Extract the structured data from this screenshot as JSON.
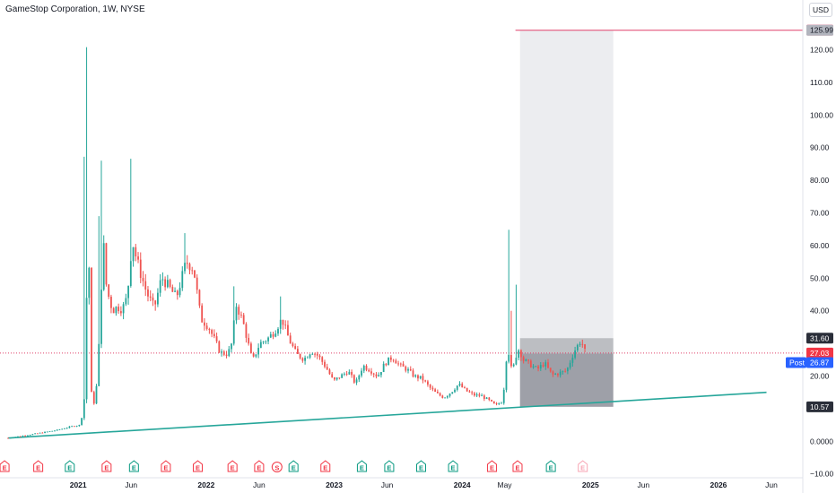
{
  "header": {
    "title": "GameStop Corporation, 1W, NYSE",
    "currency": "USD"
  },
  "colors": {
    "up": "#26a69a",
    "down": "#ef5350",
    "trendline": "#26a69a",
    "target_line": "#e0406a",
    "post_badge": "#2962ff"
  },
  "chart_data": {
    "type": "candlestick",
    "title": "GameStop Corporation, 1W, NYSE",
    "xlabel": "",
    "ylabel": "",
    "x_range": [
      "2020-06-15",
      "2026-07-20"
    ],
    "ylim": [
      -10,
      128
    ],
    "y_ticks": [
      {
        "value": 120,
        "label": "120.00"
      },
      {
        "value": 110,
        "label": "110.00"
      },
      {
        "value": 100,
        "label": "100.00"
      },
      {
        "value": 90,
        "label": "90.00"
      },
      {
        "value": 80,
        "label": "80.00"
      },
      {
        "value": 70,
        "label": "70.00"
      },
      {
        "value": 60,
        "label": "60.00"
      },
      {
        "value": 50,
        "label": "50.00"
      },
      {
        "value": 40,
        "label": "40.00"
      },
      {
        "value": 20,
        "label": "20.00"
      },
      {
        "value": 0,
        "label": "0.0000"
      },
      {
        "value": -10,
        "label": "−10.00"
      }
    ],
    "x_ticks": [
      {
        "date": "2021-01-01",
        "label": "2021",
        "bold": true
      },
      {
        "date": "2021-06-01",
        "label": "Jun",
        "bold": false
      },
      {
        "date": "2022-01-01",
        "label": "2022",
        "bold": true
      },
      {
        "date": "2022-06-01",
        "label": "Jun",
        "bold": false
      },
      {
        "date": "2023-01-01",
        "label": "2023",
        "bold": true
      },
      {
        "date": "2023-06-01",
        "label": "Jun",
        "bold": false
      },
      {
        "date": "2024-01-01",
        "label": "2024",
        "bold": true
      },
      {
        "date": "2024-05-01",
        "label": "May",
        "bold": false
      },
      {
        "date": "2025-01-01",
        "label": "2025",
        "bold": true
      },
      {
        "date": "2025-06-01",
        "label": "Jun",
        "bold": false
      },
      {
        "date": "2026-01-01",
        "label": "2026",
        "bold": true
      },
      {
        "date": "2026-06-01",
        "label": "Jun",
        "bold": false
      }
    ],
    "anchors": [
      [
        "2020-06-15",
        1.0
      ],
      [
        "2020-09-01",
        2.3
      ],
      [
        "2020-11-01",
        3.4
      ],
      [
        "2020-12-15",
        4.6
      ],
      [
        "2021-01-08",
        5.0
      ],
      [
        "2021-01-15",
        10.5
      ],
      [
        "2021-01-22",
        16.2
      ],
      [
        "2021-01-29",
        81.3
      ],
      [
        "2021-02-05",
        15.9
      ],
      [
        "2021-02-12",
        13.1
      ],
      [
        "2021-02-19",
        10.2
      ],
      [
        "2021-02-26",
        25.4
      ],
      [
        "2021-03-05",
        34.1
      ],
      [
        "2021-03-12",
        66.3
      ],
      [
        "2021-03-19",
        50.0
      ],
      [
        "2021-03-26",
        45.5
      ],
      [
        "2021-04-09",
        40.1
      ],
      [
        "2021-04-23",
        41.2
      ],
      [
        "2021-05-07",
        40.5
      ],
      [
        "2021-05-21",
        44.3
      ],
      [
        "2021-06-04",
        62.0
      ],
      [
        "2021-06-11",
        58.1
      ],
      [
        "2021-06-25",
        52.5
      ],
      [
        "2021-07-16",
        45.3
      ],
      [
        "2021-08-06",
        40.8
      ],
      [
        "2021-08-27",
        50.3
      ],
      [
        "2021-09-17",
        47.2
      ],
      [
        "2021-10-08",
        44.0
      ],
      [
        "2021-11-05",
        55.0
      ],
      [
        "2021-11-26",
        53.0
      ],
      [
        "2021-12-17",
        37.5
      ],
      [
        "2022-01-07",
        35.2
      ],
      [
        "2022-01-28",
        30.4
      ],
      [
        "2022-02-11",
        27.1
      ],
      [
        "2022-03-04",
        26.8
      ],
      [
        "2022-03-18",
        30.9
      ],
      [
        "2022-03-25",
        42.5
      ],
      [
        "2022-04-15",
        37.0
      ],
      [
        "2022-05-13",
        24.5
      ],
      [
        "2022-06-03",
        30.0
      ],
      [
        "2022-06-24",
        31.3
      ],
      [
        "2022-07-15",
        33.7
      ],
      [
        "2022-08-05",
        37.5
      ],
      [
        "2022-08-26",
        31.0
      ],
      [
        "2022-09-16",
        26.6
      ],
      [
        "2022-10-07",
        25.2
      ],
      [
        "2022-10-28",
        27.8
      ],
      [
        "2022-11-18",
        26.0
      ],
      [
        "2022-12-09",
        22.6
      ],
      [
        "2022-12-30",
        18.4
      ],
      [
        "2023-01-20",
        20.0
      ],
      [
        "2023-02-10",
        21.5
      ],
      [
        "2023-03-03",
        17.6
      ],
      [
        "2023-03-24",
        23.2
      ],
      [
        "2023-04-14",
        21.8
      ],
      [
        "2023-05-05",
        19.9
      ],
      [
        "2023-05-26",
        23.9
      ],
      [
        "2023-06-16",
        25.8
      ],
      [
        "2023-07-07",
        23.2
      ],
      [
        "2023-07-28",
        22.0
      ],
      [
        "2023-08-18",
        19.9
      ],
      [
        "2023-09-08",
        19.3
      ],
      [
        "2023-09-29",
        16.6
      ],
      [
        "2023-10-20",
        14.6
      ],
      [
        "2023-11-10",
        13.4
      ],
      [
        "2023-12-01",
        15.1
      ],
      [
        "2023-12-22",
        17.5
      ],
      [
        "2024-01-12",
        15.5
      ],
      [
        "2024-02-02",
        14.2
      ],
      [
        "2024-02-23",
        14.0
      ],
      [
        "2024-03-15",
        12.7
      ],
      [
        "2024-04-05",
        11.0
      ],
      [
        "2024-04-26",
        12.3
      ],
      [
        "2024-05-10",
        30.5
      ],
      [
        "2024-05-17",
        22.9
      ],
      [
        "2024-05-24",
        21.7
      ],
      [
        "2024-06-07",
        28.2
      ],
      [
        "2024-06-14",
        28.0
      ],
      [
        "2024-06-21",
        25.1
      ],
      [
        "2024-07-12",
        23.6
      ],
      [
        "2024-08-02",
        22.0
      ],
      [
        "2024-08-23",
        24.0
      ],
      [
        "2024-09-13",
        20.3
      ],
      [
        "2024-10-04",
        20.9
      ],
      [
        "2024-10-25",
        21.6
      ],
      [
        "2024-11-15",
        27.5
      ],
      [
        "2024-11-29",
        30.0
      ],
      [
        "2024-12-06",
        31.2
      ],
      [
        "2024-12-13",
        27.9
      ],
      [
        "2024-12-20",
        27.0
      ]
    ],
    "spikes": [
      {
        "date": "2021-01-29",
        "high": 120.8
      },
      {
        "date": "2021-01-22",
        "high": 87.2
      },
      {
        "date": "2021-03-12",
        "high": 86.0
      },
      {
        "date": "2021-06-04",
        "high": 86.6
      },
      {
        "date": "2021-03-05",
        "high": 69.0
      },
      {
        "date": "2021-11-05",
        "high": 63.8
      },
      {
        "date": "2022-03-25",
        "high": 47.5
      },
      {
        "date": "2022-08-05",
        "high": 44.4
      },
      {
        "date": "2024-05-17",
        "high": 64.8
      },
      {
        "date": "2024-06-07",
        "high": 48.0
      },
      {
        "date": "2024-05-24",
        "high": 40.0
      }
    ],
    "trendline": {
      "from": [
        "2020-06-15",
        1.0
      ],
      "to": [
        "2026-05-18",
        15.0
      ]
    },
    "position_box": {
      "start": "2024-06-14",
      "end": "2025-03-07",
      "entry": 26.87,
      "stop": 10.57,
      "target": 125.99,
      "top_zone": 31.6
    },
    "target_line": {
      "start": "2024-06-01",
      "value": 125.99
    },
    "current_price_line": 27.03,
    "events": [
      {
        "date": "2020-06-05",
        "type": "E",
        "color": "red"
      },
      {
        "date": "2020-09-09",
        "type": "E",
        "color": "red"
      },
      {
        "date": "2020-12-08",
        "type": "E",
        "color": "green"
      },
      {
        "date": "2021-03-23",
        "type": "E",
        "color": "red"
      },
      {
        "date": "2021-06-09",
        "type": "E",
        "color": "green"
      },
      {
        "date": "2021-09-08",
        "type": "E",
        "color": "red"
      },
      {
        "date": "2021-12-08",
        "type": "E",
        "color": "red"
      },
      {
        "date": "2022-03-17",
        "type": "E",
        "color": "red"
      },
      {
        "date": "2022-06-01",
        "type": "E",
        "color": "red"
      },
      {
        "date": "2022-07-22",
        "type": "S",
        "color": "red"
      },
      {
        "date": "2022-09-07",
        "type": "E",
        "color": "green"
      },
      {
        "date": "2022-12-07",
        "type": "E",
        "color": "red"
      },
      {
        "date": "2023-03-21",
        "type": "E",
        "color": "green"
      },
      {
        "date": "2023-06-07",
        "type": "E",
        "color": "green"
      },
      {
        "date": "2023-09-06",
        "type": "E",
        "color": "green"
      },
      {
        "date": "2023-12-06",
        "type": "E",
        "color": "green"
      },
      {
        "date": "2024-03-26",
        "type": "E",
        "color": "red"
      },
      {
        "date": "2024-06-07",
        "type": "E",
        "color": "red"
      },
      {
        "date": "2024-09-10",
        "type": "E",
        "color": "green"
      },
      {
        "date": "2024-12-10",
        "type": "E",
        "color": "future"
      }
    ]
  },
  "price_tags": {
    "target_top": {
      "value": 126.0,
      "label": "126.00"
    },
    "target": {
      "value": 125.99,
      "label": "125.99"
    },
    "zone_top": {
      "value": 31.6,
      "label": "31.60"
    },
    "last": {
      "value": 27.03,
      "label": "27.03"
    },
    "post": {
      "value": 26.87,
      "badge": "Post",
      "label": "26.87"
    },
    "stop": {
      "value": 10.57,
      "label": "10.57"
    }
  }
}
